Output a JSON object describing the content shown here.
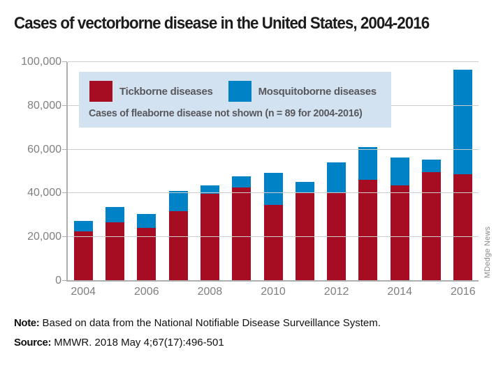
{
  "title": "Cases of vectorborne disease in the United States, 2004-2016",
  "chart_data": {
    "type": "bar",
    "stacked": true,
    "title": "Cases of vectorborne disease in the United States, 2004-2016",
    "categories": [
      "2004",
      "2005",
      "2006",
      "2007",
      "2008",
      "2009",
      "2010",
      "2011",
      "2012",
      "2013",
      "2014",
      "2015",
      "2016"
    ],
    "series": [
      {
        "name": "Tickborne diseases",
        "color": "#a60c22",
        "values": [
          22500,
          26800,
          24300,
          31800,
          39900,
          42600,
          34800,
          40600,
          40100,
          46100,
          43700,
          49800,
          48600
        ]
      },
      {
        "name": "Mosquitoborne diseases",
        "color": "#0082c6",
        "values": [
          4900,
          7100,
          6300,
          9300,
          3800,
          5200,
          14700,
          4500,
          13900,
          15200,
          12800,
          5700,
          47900
        ]
      }
    ],
    "totals": [
      27400,
      33900,
      30600,
      41100,
      43700,
      47800,
      49500,
      45100,
      54000,
      61300,
      56500,
      55500,
      96500
    ],
    "ylim": [
      0,
      100000
    ],
    "y_ticks": [
      {
        "value": 0,
        "label": "0"
      },
      {
        "value": 20000,
        "label": "20,000"
      },
      {
        "value": 40000,
        "label": "40,000"
      },
      {
        "value": 60000,
        "label": "60,000"
      },
      {
        "value": 80000,
        "label": "80,000"
      },
      {
        "value": 100000,
        "label": "100,000"
      }
    ],
    "x_label_step": 2,
    "grid": "horizontal",
    "legend_position": "top-left-inside",
    "annotation": "Cases of fleaborne disease not shown (n = 89 for 2004-2016)"
  },
  "legend": {
    "items": [
      {
        "label": "Tickborne diseases",
        "color": "#a60c22"
      },
      {
        "label": "Mosquitoborne diseases",
        "color": "#0082c6"
      }
    ],
    "note": "Cases of fleaborne disease not shown (n = 89 for 2004-2016)",
    "background": "#d3e2f1"
  },
  "footer": {
    "note_label": "Note:",
    "note_text": " Based on data from the National Notifiable Disease Surveillance System.",
    "source_label": "Source:",
    "source_text": " MMWR. 2018 May 4;67(17):496-501"
  },
  "watermark": "MDedge News",
  "colors": {
    "tickborne": "#a60c22",
    "mosquitoborne": "#0082c6",
    "legend_background": "#d3e2f1",
    "gridline": "#cccccc",
    "axis": "#aeaeae",
    "axis_text": "#7d7f81",
    "legend_text": "#57585c"
  }
}
